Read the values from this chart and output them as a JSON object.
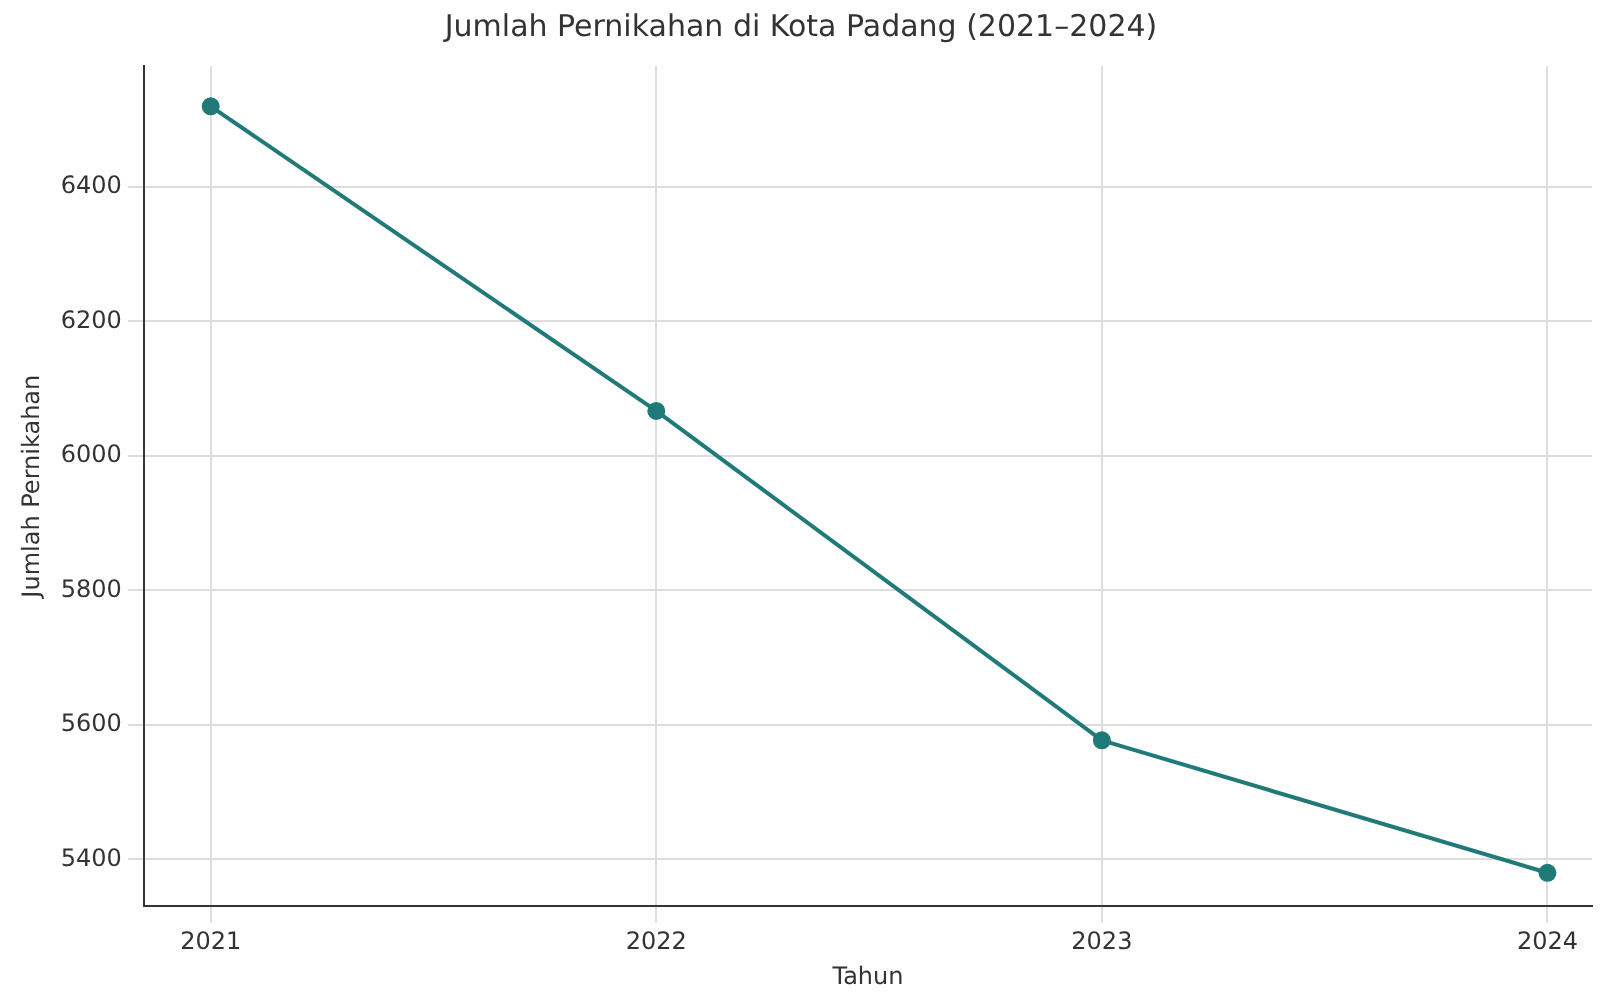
{
  "chart_data": {
    "type": "line",
    "title": "Jumlah Pernikahan di Kota Padang (2021–2024)",
    "xlabel": "Tahun",
    "ylabel": "Jumlah Pernikahan",
    "x": [
      2021,
      2022,
      2023,
      2024
    ],
    "series": [
      {
        "color": "#1f7a78",
        "values": [
          6520,
          6067,
          5577,
          5380
        ]
      }
    ],
    "xlim": [
      2020.85,
      2024.1
    ],
    "xticks": [
      2021,
      2022,
      2023,
      2024
    ],
    "ylim": [
      5330,
      6580
    ],
    "yticks": [
      5400,
      5600,
      5800,
      6000,
      6200,
      6400
    ],
    "grid": true,
    "marker": "circle",
    "line_style": "solid",
    "legend": false
  }
}
